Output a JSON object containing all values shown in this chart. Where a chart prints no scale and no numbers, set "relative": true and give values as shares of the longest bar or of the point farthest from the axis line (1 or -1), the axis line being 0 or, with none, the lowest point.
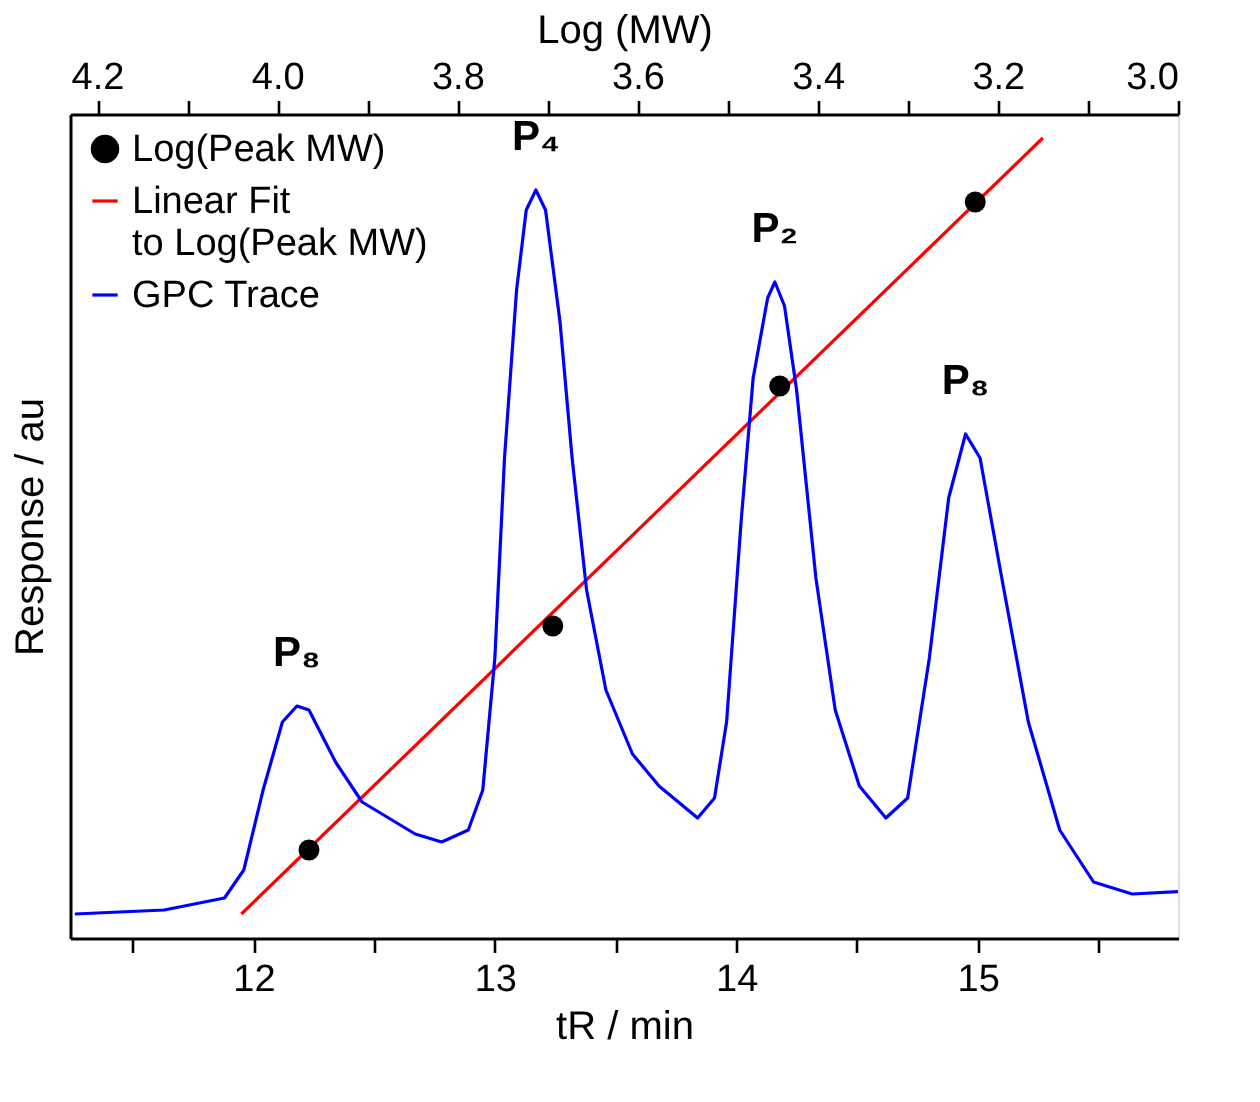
{
  "chart_data": {
    "type": "line",
    "relative": true,
    "xlabel": "tR / min",
    "ylabel": "Response / au",
    "x2label": "Log (MW)",
    "xlim": [
      11.24,
      15.83
    ],
    "xticks": [
      {
        "value": 11.5,
        "label": null
      },
      12,
      {
        "value": 12.5,
        "label": null
      },
      13,
      {
        "value": 13.5,
        "label": null
      },
      14,
      {
        "value": 14.5,
        "label": null
      },
      15,
      {
        "value": 15.5,
        "label": null
      }
    ],
    "x2lim": [
      4.23,
      3.0
    ],
    "x2ticks": [
      4.2,
      {
        "value": 4.1,
        "label": null
      },
      {
        "value": 4,
        "label": "4.0"
      },
      {
        "value": 3.9,
        "label": null
      },
      3.8,
      {
        "value": 3.7,
        "label": null
      },
      3.6,
      {
        "value": 3.5,
        "label": null
      },
      3.4,
      {
        "value": 3.3,
        "label": null
      },
      3.2,
      {
        "value": 3.1,
        "label": null
      },
      {
        "value": 3,
        "label": "3.0"
      }
    ],
    "grid": false,
    "legend": "top left",
    "series": [
      {
        "name": "Log(Peak MW)",
        "type": "scatter",
        "marker": "circle",
        "color": "#000000",
        "x": [
          12.23,
          13.24,
          14.18,
          14.99
        ],
        "values": [
          0.11,
          0.39,
          0.69,
          0.92
        ]
      },
      {
        "name": "Linear Fit to Log(Peak MW)",
        "type": "line",
        "color": "#ff0000",
        "x": [
          11.95,
          15.27
        ],
        "values": [
          0.03,
          1.0
        ]
      },
      {
        "name": "GPC Trace",
        "color": "#0000ff",
        "x": [
          11.26,
          11.63,
          11.88,
          11.96,
          12.04,
          12.12,
          12.18,
          12.23,
          12.34,
          12.45,
          12.56,
          12.67,
          12.78,
          12.89,
          12.95,
          13.0,
          13.04,
          13.09,
          13.13,
          13.17,
          13.21,
          13.27,
          13.32,
          13.38,
          13.46,
          13.57,
          13.68,
          13.84,
          13.91,
          13.96,
          14.02,
          14.07,
          14.13,
          14.16,
          14.2,
          14.25,
          14.33,
          14.41,
          14.51,
          14.62,
          14.71,
          14.8,
          14.88,
          14.95,
          15.01,
          15.1,
          15.21,
          15.34,
          15.48,
          15.64,
          15.83
        ],
        "values": [
          0.03,
          0.035,
          0.05,
          0.085,
          0.185,
          0.27,
          0.29,
          0.285,
          0.22,
          0.17,
          0.15,
          0.13,
          0.12,
          0.135,
          0.185,
          0.35,
          0.6,
          0.81,
          0.91,
          0.935,
          0.91,
          0.77,
          0.6,
          0.435,
          0.31,
          0.23,
          0.19,
          0.15,
          0.175,
          0.27,
          0.52,
          0.7,
          0.8,
          0.82,
          0.79,
          0.685,
          0.45,
          0.285,
          0.19,
          0.15,
          0.175,
          0.35,
          0.55,
          0.63,
          0.6,
          0.45,
          0.27,
          0.135,
          0.07,
          0.055,
          0.058
        ]
      }
    ],
    "annotations": [
      {
        "text": "P₈",
        "x": 12.18,
        "y": 0.29
      },
      {
        "text": "P₄",
        "x": 13.17,
        "y": 0.935
      },
      {
        "text": "P₂",
        "x": 14.16,
        "y": 0.82
      },
      {
        "text": "P₈",
        "x": 14.95,
        "y": 0.63
      }
    ]
  }
}
